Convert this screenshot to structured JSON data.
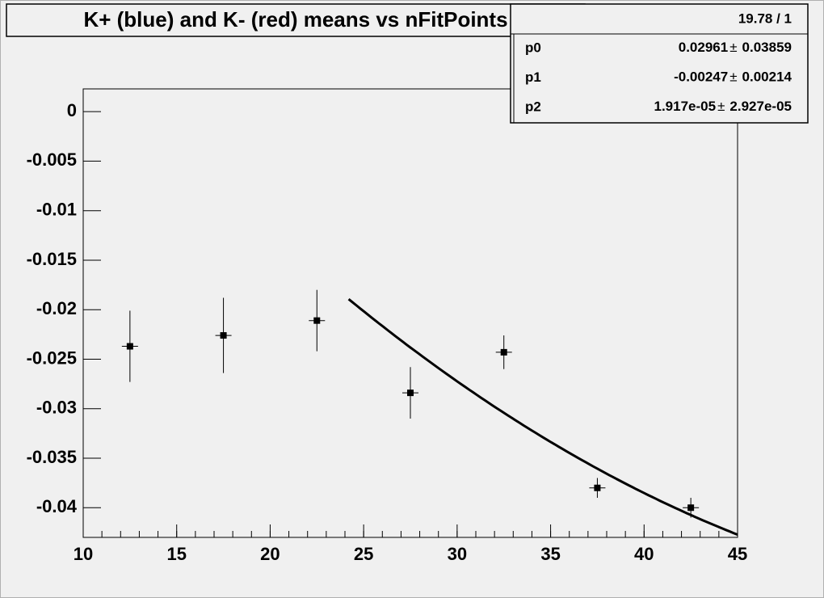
{
  "chart_data": {
    "type": "scatter",
    "title": "K+ (blue) and K- (red) means vs nFitPoints",
    "x": [
      12.5,
      17.5,
      22.5,
      27.5,
      32.5,
      37.5,
      42.5
    ],
    "series": [
      {
        "color": "#000000",
        "values": [
          -0.0237,
          -0.0226,
          -0.0211,
          -0.0284,
          -0.0243,
          -0.038,
          -0.04
        ],
        "errors": [
          0.0036,
          0.0038,
          0.0031,
          0.0026,
          0.0017,
          0.001,
          0.001
        ]
      }
    ],
    "xlim": [
      10,
      45
    ],
    "xticks": [
      10,
      15,
      20,
      25,
      30,
      35,
      40,
      45
    ],
    "ylim": [
      -0.043,
      0.0023
    ],
    "yticks": [
      0,
      -0.005,
      -0.01,
      -0.015,
      -0.02,
      -0.025,
      -0.03,
      -0.035,
      -0.04
    ],
    "fit": {
      "color": "#000000",
      "range": [
        24.2,
        45
      ],
      "chi2_ndf": "19.78 / 1",
      "error_symbol": "±",
      "params": [
        {
          "name": "p0",
          "value": 0.02961,
          "error": 0.03859
        },
        {
          "name": "p1",
          "value": -0.00247,
          "error": 0.00214
        },
        {
          "name": "p2",
          "value": {
            "value": 1.917e-05,
            "label": "1.917e-05"
          },
          "error": {
            "value": 2.927e-05,
            "label": "2.927e-05"
          }
        }
      ]
    }
  }
}
